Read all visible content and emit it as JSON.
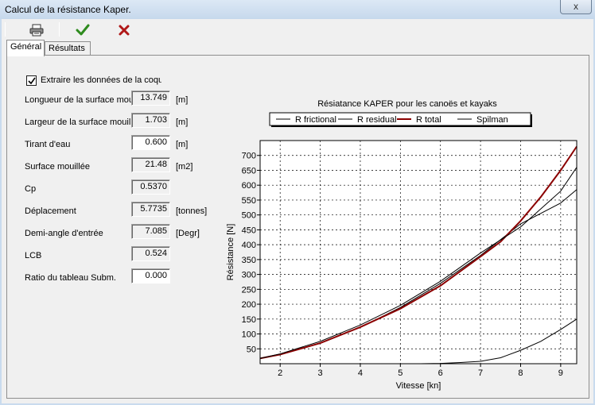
{
  "window": {
    "title": "Calcul de la résistance Kaper.",
    "close_glyph": "x"
  },
  "toolbar": {
    "buttons": [
      {
        "name": "print-button",
        "icon": "printer-icon"
      },
      {
        "name": "ok-button",
        "icon": "check-icon",
        "color": "#2e8b1e"
      },
      {
        "name": "cancel-button",
        "icon": "cross-icon",
        "color": "#b01818"
      }
    ]
  },
  "tabs": [
    {
      "label": "Général",
      "active": true
    },
    {
      "label": "Résultats",
      "active": false
    }
  ],
  "form": {
    "extract_label": "Extraire les données de la coque",
    "extract_checked": true,
    "fields": [
      {
        "label": "Longueur de la surface mouillée",
        "value": "13.749",
        "unit": "[m]"
      },
      {
        "label": "Largeur de la surface mouillée",
        "value": "1.703",
        "unit": "[m]"
      },
      {
        "label": "Tirant d'eau",
        "value": "0.600",
        "unit": "[m]",
        "editable": true
      },
      {
        "label": "Surface mouillée",
        "value": "21.48",
        "unit": "[m2]"
      },
      {
        "label": "Cp",
        "value": "0.5370",
        "unit": ""
      },
      {
        "label": "Déplacement",
        "value": "5.7735",
        "unit": "[tonnes]"
      },
      {
        "label": "Demi-angle d'entrée",
        "value": "7.085",
        "unit": "[Degr]"
      },
      {
        "label": "LCB",
        "value": "0.524",
        "unit": ""
      },
      {
        "label": "Ratio du tableau Subm.",
        "value": "0.000",
        "unit": "",
        "editable": true
      }
    ]
  },
  "chart_data": {
    "type": "line",
    "title": "Résiatance KAPER pour les canoës et kayaks",
    "xlabel": "Vitesse [kn]",
    "ylabel": "Résistance [N]",
    "xlim": [
      1.5,
      9.4
    ],
    "ylim": [
      0,
      750
    ],
    "xticks": [
      2,
      3,
      4,
      5,
      6,
      7,
      8,
      9
    ],
    "yticks": [
      50,
      100,
      150,
      200,
      250,
      300,
      350,
      400,
      450,
      500,
      550,
      600,
      650,
      700
    ],
    "grid": true,
    "legend_position": "top",
    "series": [
      {
        "name": "R frictional",
        "color": "#000000",
        "width": 1,
        "x": [
          1.5,
          2,
          3,
          4,
          5,
          6,
          7,
          8,
          9,
          9.4
        ],
        "y": [
          18,
          32,
          69,
          122,
          189,
          270,
          364,
          470,
          540,
          585
        ]
      },
      {
        "name": "R residual",
        "color": "#000000",
        "width": 1,
        "x": [
          5.5,
          6,
          6.5,
          7,
          7.5,
          8,
          8.5,
          9,
          9.4
        ],
        "y": [
          0,
          1,
          4,
          8,
          20,
          45,
          75,
          115,
          150
        ]
      },
      {
        "name": "R total",
        "color": "#8b0000",
        "width": 2,
        "x": [
          1.5,
          2,
          3,
          4,
          5,
          6,
          7,
          7.5,
          8,
          8.5,
          9,
          9.4
        ],
        "y": [
          18,
          31,
          69,
          123,
          185,
          262,
          360,
          410,
          480,
          560,
          650,
          730
        ]
      },
      {
        "name": "Spilman",
        "color": "#000000",
        "width": 1,
        "x": [
          1.5,
          2,
          3,
          4,
          5,
          6,
          7,
          8,
          9,
          9.4
        ],
        "y": [
          18,
          33,
          75,
          130,
          196,
          277,
          372,
          460,
          580,
          660
        ]
      }
    ]
  }
}
